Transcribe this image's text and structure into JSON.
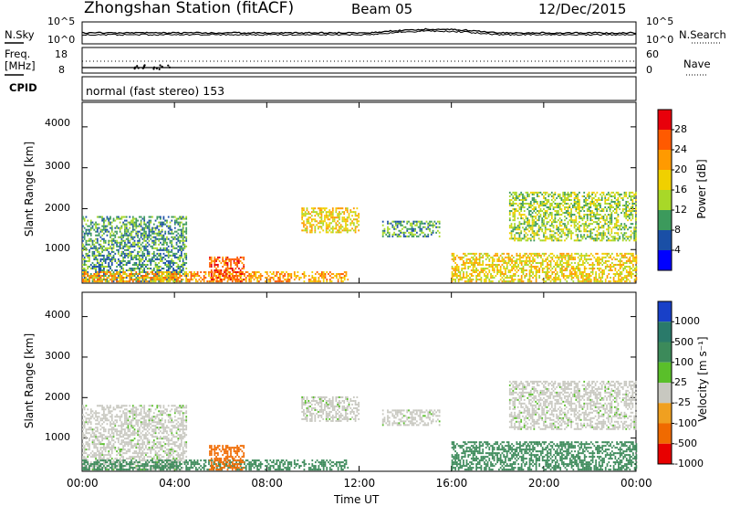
{
  "header": {
    "station": "Zhongshan Station (fitACF)",
    "beam": "Beam 05",
    "date": "12/Dec/2015"
  },
  "top_panel": {
    "left_label": "N.Sky",
    "right_label": "N.Search",
    "left_ticks": [
      "10^5",
      "10^0"
    ],
    "right_ticks": [
      "10^5",
      "10^0"
    ]
  },
  "freq_panel": {
    "left_label_line1": "Freq.",
    "left_label_line2": "[MHz]",
    "right_label": "Nave",
    "left_ticks": [
      "18",
      "8"
    ],
    "right_ticks": [
      "60",
      "0"
    ]
  },
  "cpid_panel": {
    "label": "CPID",
    "text": "normal (fast stereo) 153"
  },
  "power_panel": {
    "ylabel": "Slant Range [km]",
    "yticks": [
      "4000",
      "3000",
      "2000",
      "1000"
    ],
    "colorbar_label": "Power [dB]",
    "colorbar_ticks": [
      "28",
      "24",
      "20",
      "16",
      "12",
      "8",
      "4"
    ],
    "colorbar_colors": [
      "#e8000b",
      "#ff5a00",
      "#ff9a00",
      "#f0d000",
      "#a8d828",
      "#3c9a5c",
      "#1a4fa6",
      "#0000ff"
    ]
  },
  "velocity_panel": {
    "ylabel": "Slant Range [km]",
    "yticks": [
      "4000",
      "3000",
      "2000",
      "1000"
    ],
    "colorbar_label": "Velocity [m s⁻¹]",
    "colorbar_ticks": [
      "1000",
      "500",
      "100",
      "25",
      "-25",
      "-100",
      "-500",
      "-1000"
    ],
    "colorbar_colors": [
      "#1840c8",
      "#2a7a6a",
      "#3c8a5a",
      "#5abf2a",
      "#c8c8c0",
      "#f0a020",
      "#f06a00",
      "#e80000"
    ]
  },
  "xaxis": {
    "label": "Time UT",
    "ticks": [
      "00:00",
      "04:00",
      "08:00",
      "12:00",
      "16:00",
      "20:00",
      "00:00"
    ]
  },
  "chart_data": {
    "type": "heatmap",
    "title": "Zhongshan Station (fitACF) Beam 05 12/Dec/2015",
    "xlabel": "Time UT",
    "ylabel": "Slant Range [km]",
    "xlim_hours": [
      0,
      24
    ],
    "ylim_km": [
      180,
      4600
    ],
    "echo_regions": [
      {
        "t0": 0.0,
        "t1": 4.5,
        "r0": 200,
        "r1": 1800,
        "power_db": 8,
        "velocity": -25
      },
      {
        "t0": 0.0,
        "t1": 11.5,
        "r0": 200,
        "r1": 450,
        "power_db": 20,
        "velocity": 100
      },
      {
        "t0": 5.5,
        "t1": 7.0,
        "r0": 200,
        "r1": 800,
        "power_db": 24,
        "velocity": -500
      },
      {
        "t0": 9.5,
        "t1": 12.0,
        "r0": 1400,
        "r1": 2000,
        "power_db": 16,
        "velocity": -25
      },
      {
        "t0": 13.0,
        "t1": 15.5,
        "r0": 1300,
        "r1": 1700,
        "power_db": 8,
        "velocity": -25
      },
      {
        "t0": 16.0,
        "t1": 24.0,
        "r0": 200,
        "r1": 900,
        "power_db": 16,
        "velocity": 100
      },
      {
        "t0": 18.5,
        "t1": 24.0,
        "r0": 1200,
        "r1": 2400,
        "power_db": 12,
        "velocity": -25
      }
    ]
  }
}
